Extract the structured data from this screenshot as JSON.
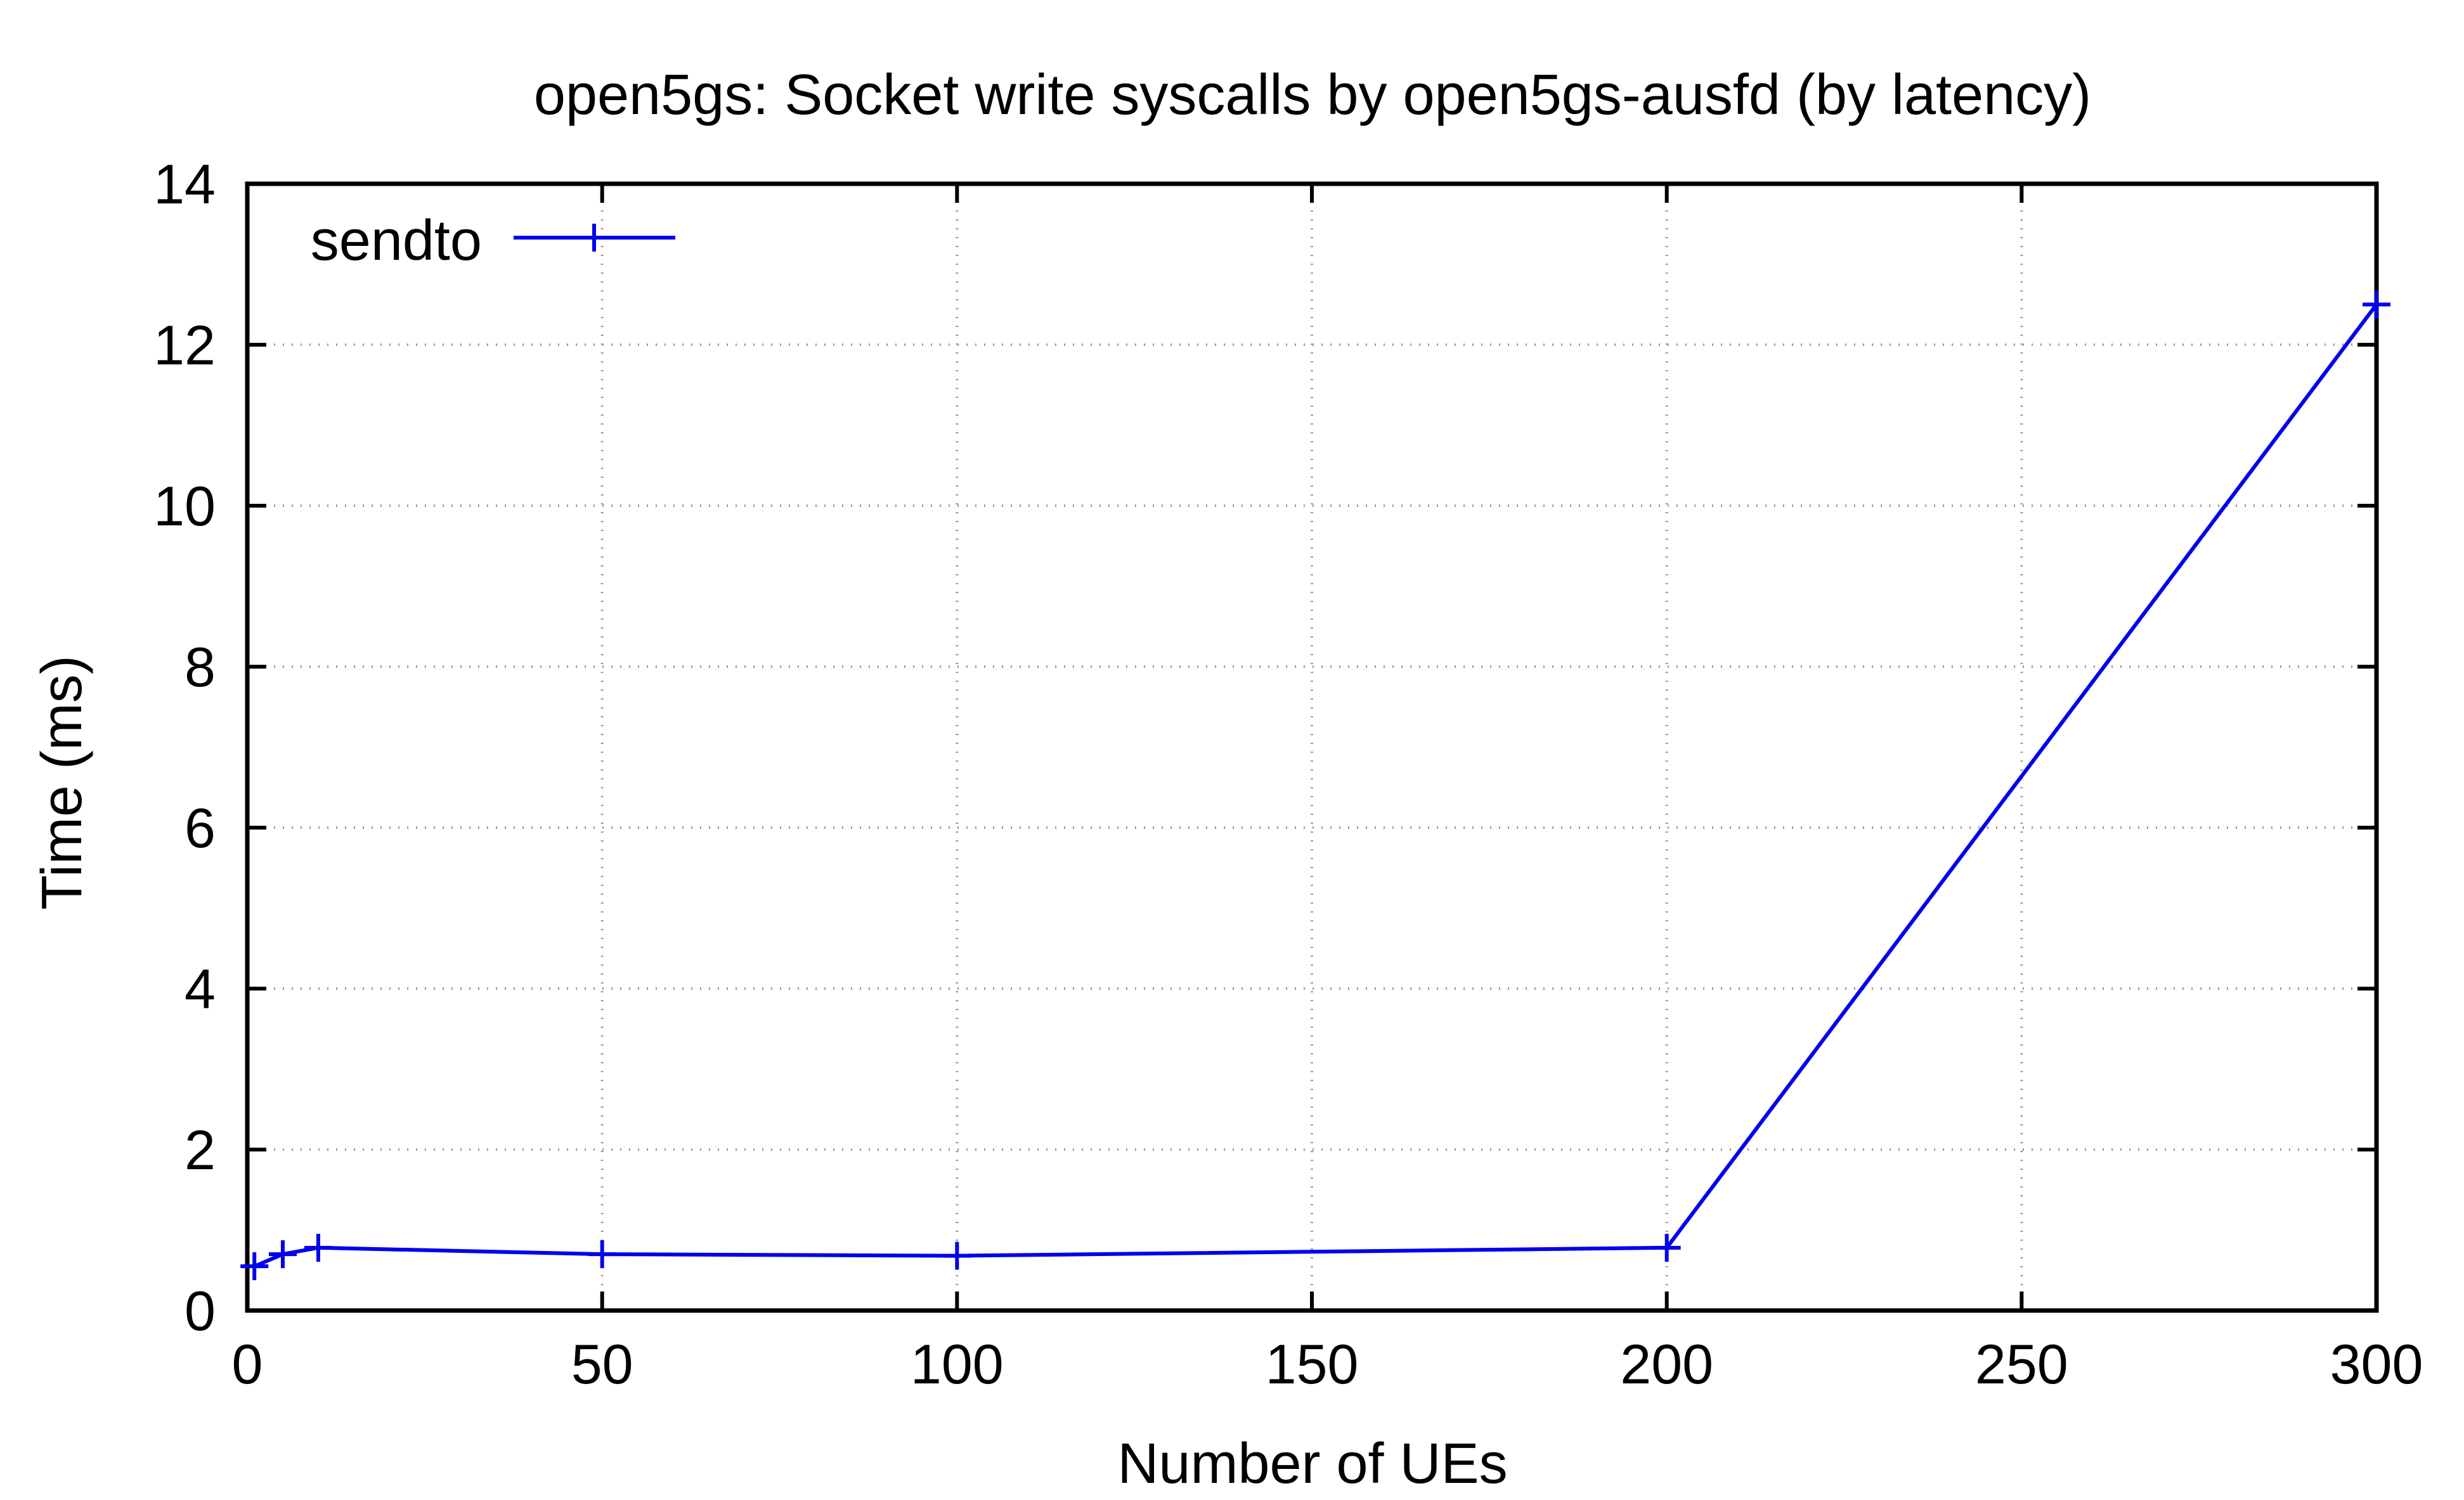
{
  "chart_data": {
    "type": "line",
    "title": "open5gs: Socket write syscalls by open5gs-ausfd (by latency)",
    "xlabel": "Number of UEs",
    "ylabel": "Time (ms)",
    "xlim": [
      0,
      300
    ],
    "ylim": [
      0,
      14
    ],
    "xticks": [
      0,
      50,
      100,
      150,
      200,
      250,
      300
    ],
    "yticks": [
      0,
      2,
      4,
      6,
      8,
      10,
      12,
      14
    ],
    "grid": true,
    "grid_style": "dotted",
    "legend_position": "top-left",
    "series": [
      {
        "name": "sendto",
        "color": "#0000ee",
        "marker": "plus",
        "x": [
          1,
          5,
          10,
          50,
          100,
          200,
          300
        ],
        "y": [
          0.55,
          0.7,
          0.78,
          0.7,
          0.68,
          0.78,
          12.5
        ]
      }
    ]
  }
}
